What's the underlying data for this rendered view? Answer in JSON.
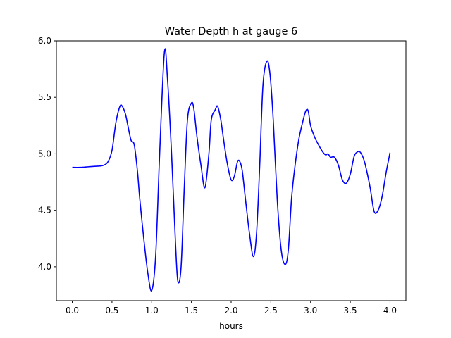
{
  "chart_data": {
    "type": "line",
    "title": "Water Depth h at gauge 6",
    "xlabel": "hours",
    "ylabel": "",
    "xlim": [
      -0.2,
      4.2
    ],
    "ylim": [
      3.7,
      6.0
    ],
    "xticks": [
      0.0,
      0.5,
      1.0,
      1.5,
      2.0,
      2.5,
      3.0,
      3.5,
      4.0
    ],
    "xtick_labels": [
      "0.0",
      "0.5",
      "1.0",
      "1.5",
      "2.0",
      "2.5",
      "3.0",
      "3.5",
      "4.0"
    ],
    "yticks": [
      4.0,
      4.5,
      5.0,
      5.5,
      6.0
    ],
    "ytick_labels": [
      "4.0",
      "4.5",
      "5.0",
      "5.5",
      "6.0"
    ],
    "grid": false,
    "series": [
      {
        "color": "#0000ff",
        "x": [
          0.0,
          0.1,
          0.2,
          0.3,
          0.35,
          0.4,
          0.45,
          0.5,
          0.55,
          0.6,
          0.63,
          0.67,
          0.7,
          0.74,
          0.78,
          0.82,
          0.85,
          0.9,
          0.95,
          1.0,
          1.05,
          1.1,
          1.16,
          1.2,
          1.25,
          1.3,
          1.33,
          1.37,
          1.41,
          1.45,
          1.5,
          1.53,
          1.57,
          1.62,
          1.67,
          1.72,
          1.75,
          1.8,
          1.83,
          1.87,
          1.9,
          1.95,
          2.0,
          2.04,
          2.08,
          2.11,
          2.14,
          2.18,
          2.23,
          2.28,
          2.32,
          2.36,
          2.4,
          2.45,
          2.49,
          2.53,
          2.58,
          2.63,
          2.68,
          2.72,
          2.76,
          2.8,
          2.85,
          2.9,
          2.94,
          2.97,
          3.0,
          3.05,
          3.1,
          3.15,
          3.19,
          3.22,
          3.25,
          3.3,
          3.35,
          3.4,
          3.45,
          3.5,
          3.55,
          3.6,
          3.63,
          3.67,
          3.7,
          3.75,
          3.8,
          3.85,
          3.9,
          3.95,
          4.0
        ],
        "y": [
          4.88,
          4.88,
          4.885,
          4.89,
          4.892,
          4.9,
          4.93,
          5.03,
          5.28,
          5.42,
          5.42,
          5.35,
          5.25,
          5.12,
          5.08,
          4.85,
          4.6,
          4.25,
          3.95,
          3.79,
          4.1,
          5.0,
          5.9,
          5.65,
          5.0,
          4.2,
          3.87,
          4.0,
          4.7,
          5.3,
          5.45,
          5.4,
          5.15,
          4.9,
          4.7,
          5.0,
          5.3,
          5.39,
          5.42,
          5.3,
          5.15,
          4.92,
          4.77,
          4.8,
          4.93,
          4.93,
          4.85,
          4.6,
          4.3,
          4.09,
          4.3,
          4.9,
          5.6,
          5.82,
          5.7,
          5.3,
          4.6,
          4.15,
          4.02,
          4.15,
          4.6,
          4.87,
          5.12,
          5.28,
          5.38,
          5.38,
          5.25,
          5.15,
          5.08,
          5.02,
          4.99,
          5.0,
          4.97,
          4.97,
          4.9,
          4.77,
          4.74,
          4.82,
          4.98,
          5.02,
          5.01,
          4.95,
          4.87,
          4.7,
          4.49,
          4.5,
          4.62,
          4.83,
          5.01
        ]
      }
    ]
  }
}
